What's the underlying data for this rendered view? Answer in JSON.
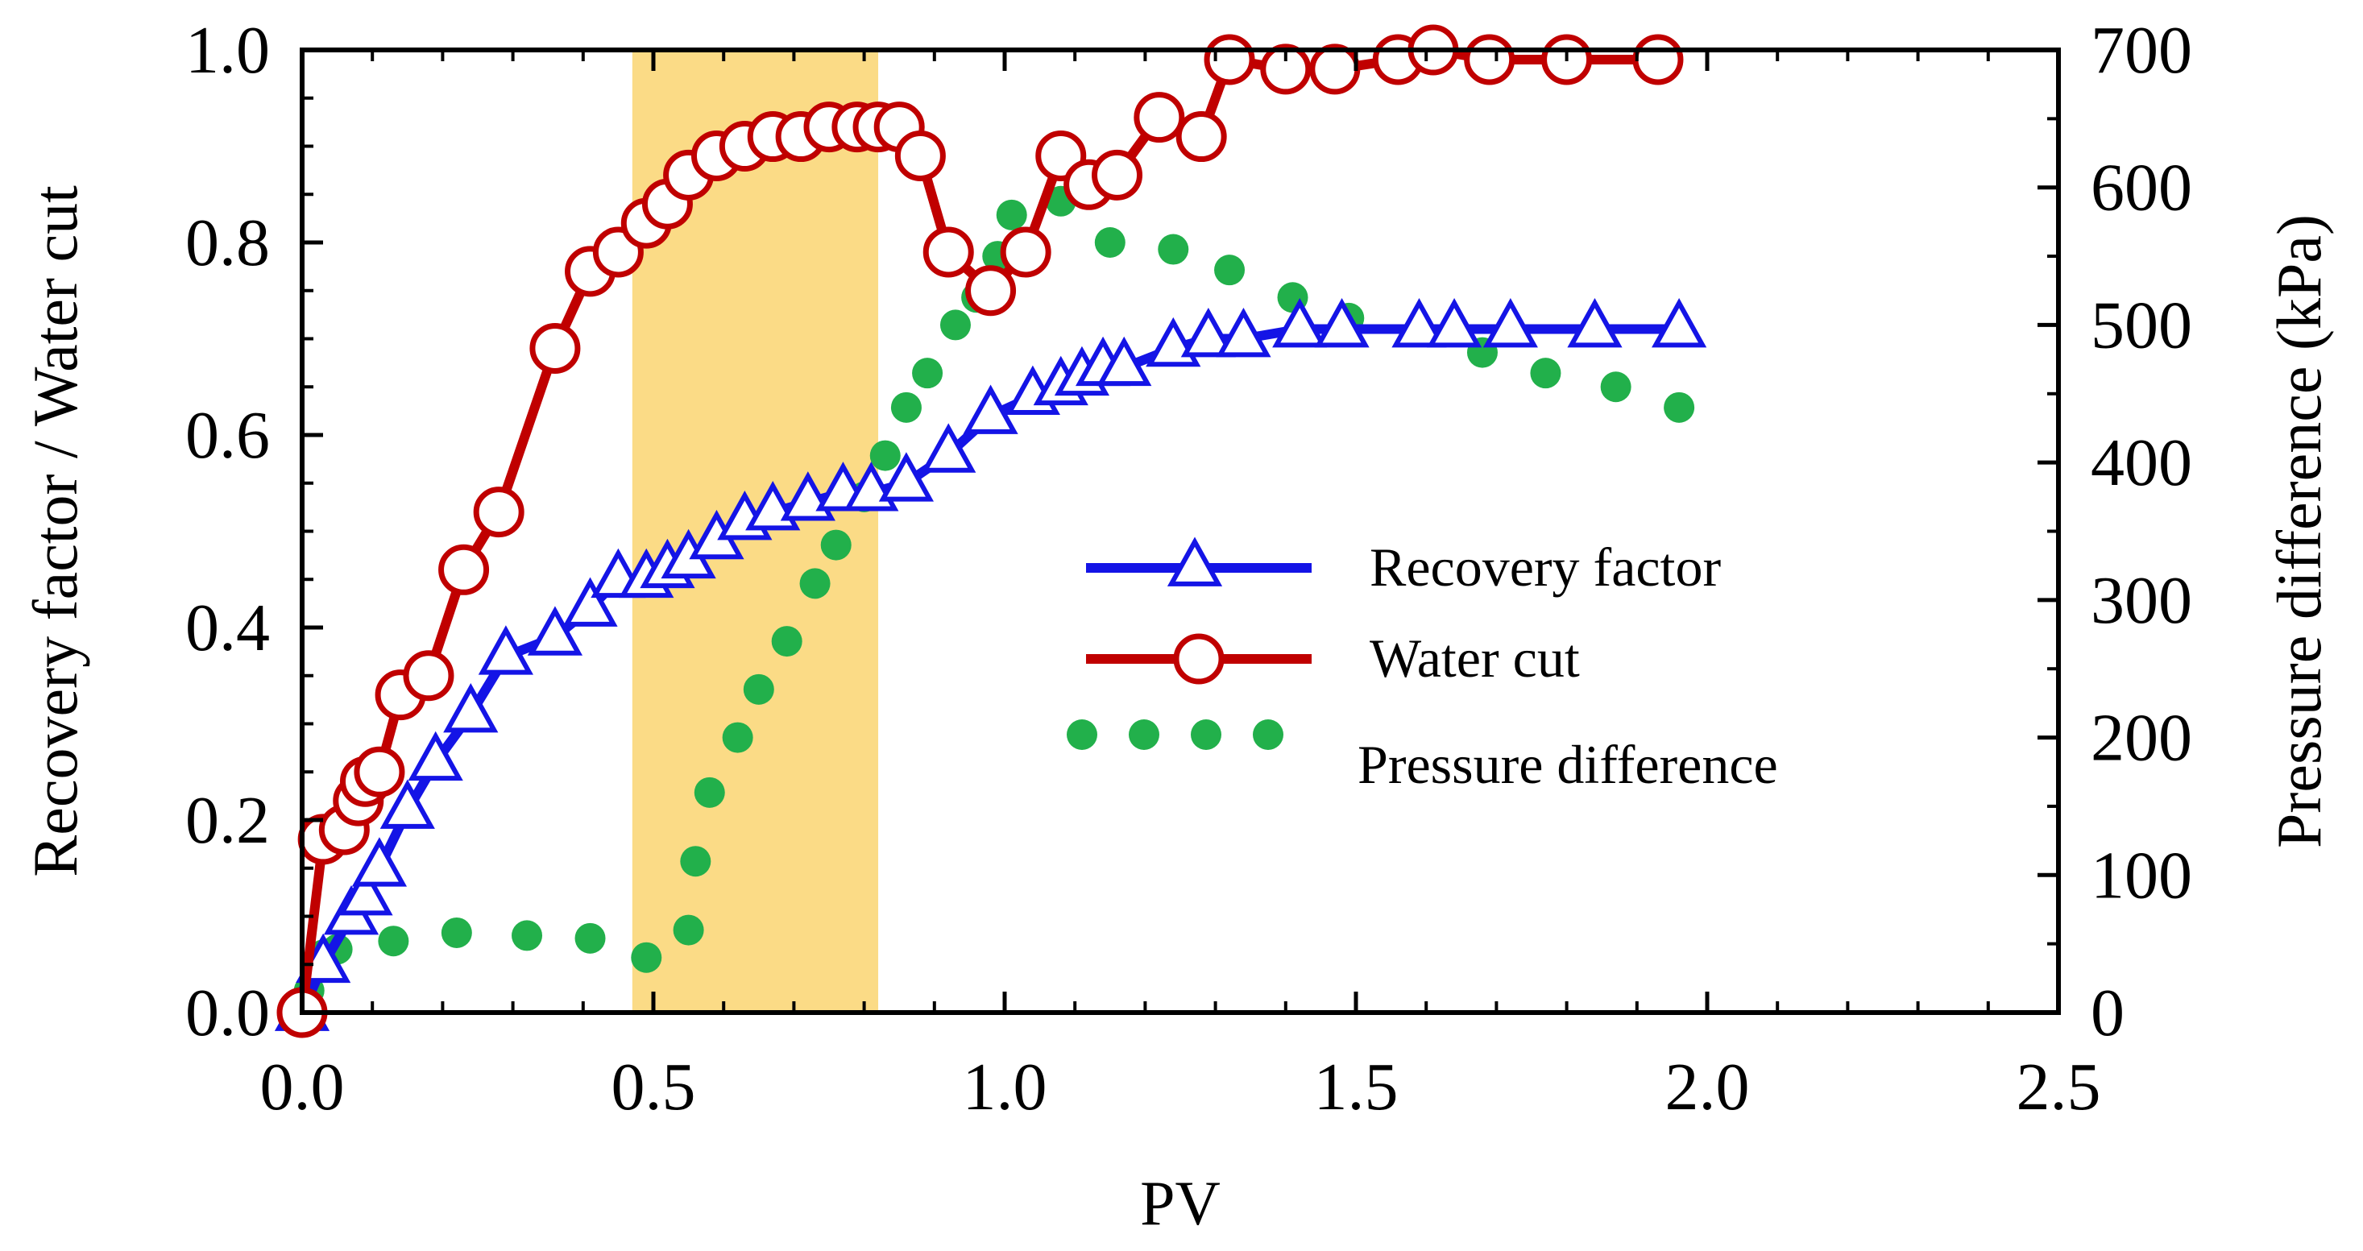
{
  "chart_data": {
    "type": "line",
    "title": "",
    "xlabel": "PV",
    "ylabel_left": "Recovery factor / Water cut",
    "ylabel_right": "Pressure difference (kPa)",
    "xlim": [
      0,
      2.5
    ],
    "ylim_left": [
      0,
      1.0
    ],
    "ylim_right": [
      0,
      700
    ],
    "x_ticks": [
      "0.0",
      "0.5",
      "1.0",
      "1.5",
      "2.0",
      "2.5"
    ],
    "y_left_ticks": [
      "0.0",
      "0.2",
      "0.4",
      "0.6",
      "0.8",
      "1.0"
    ],
    "y_right_ticks": [
      "0",
      "100",
      "200",
      "300",
      "400",
      "500",
      "600",
      "700"
    ],
    "grid": false,
    "legend_position": "center-right",
    "highlight_region": {
      "x_from": 0.47,
      "x_to": 0.82,
      "color": "#FBD980"
    },
    "series": [
      {
        "name": "Recovery factor",
        "axis": "left",
        "style": "line-triangle",
        "color": "#1414E6",
        "x": [
          0.0,
          0.03,
          0.07,
          0.09,
          0.11,
          0.15,
          0.19,
          0.24,
          0.29,
          0.36,
          0.41,
          0.45,
          0.49,
          0.52,
          0.55,
          0.59,
          0.63,
          0.67,
          0.72,
          0.77,
          0.81,
          0.86,
          0.92,
          0.98,
          1.04,
          1.08,
          1.11,
          1.14,
          1.17,
          1.24,
          1.29,
          1.34,
          1.42,
          1.48,
          1.59,
          1.64,
          1.72,
          1.84,
          1.96
        ],
        "y": [
          0.0,
          0.05,
          0.1,
          0.12,
          0.15,
          0.21,
          0.26,
          0.31,
          0.37,
          0.39,
          0.42,
          0.45,
          0.45,
          0.46,
          0.47,
          0.49,
          0.51,
          0.52,
          0.53,
          0.54,
          0.54,
          0.55,
          0.58,
          0.62,
          0.64,
          0.65,
          0.66,
          0.67,
          0.67,
          0.69,
          0.7,
          0.7,
          0.71,
          0.71,
          0.71,
          0.71,
          0.71,
          0.71,
          0.71
        ]
      },
      {
        "name": "Water cut",
        "axis": "left",
        "style": "line-circle",
        "color": "#C00000",
        "x": [
          0.0,
          0.03,
          0.06,
          0.08,
          0.09,
          0.11,
          0.14,
          0.18,
          0.23,
          0.28,
          0.36,
          0.41,
          0.45,
          0.49,
          0.52,
          0.55,
          0.59,
          0.63,
          0.67,
          0.71,
          0.75,
          0.79,
          0.82,
          0.85,
          0.88,
          0.92,
          0.98,
          1.03,
          1.08,
          1.12,
          1.16,
          1.22,
          1.28,
          1.32,
          1.4,
          1.47,
          1.56,
          1.61,
          1.69,
          1.8,
          1.93
        ],
        "y": [
          0.0,
          0.18,
          0.19,
          0.22,
          0.24,
          0.25,
          0.33,
          0.35,
          0.46,
          0.52,
          0.69,
          0.77,
          0.79,
          0.82,
          0.84,
          0.87,
          0.89,
          0.9,
          0.91,
          0.91,
          0.92,
          0.92,
          0.92,
          0.92,
          0.89,
          0.79,
          0.75,
          0.79,
          0.89,
          0.86,
          0.87,
          0.93,
          0.91,
          0.99,
          0.98,
          0.98,
          0.99,
          1.0,
          0.99,
          0.99,
          0.99
        ]
      },
      {
        "name": "Pressure difference",
        "axis": "right",
        "style": "dots",
        "color": "#22B04B",
        "x": [
          0.01,
          0.02,
          0.03,
          0.05,
          0.13,
          0.22,
          0.32,
          0.41,
          0.49,
          0.55,
          0.56,
          0.58,
          0.62,
          0.65,
          0.69,
          0.73,
          0.76,
          0.8,
          0.83,
          0.86,
          0.89,
          0.93,
          0.96,
          0.99,
          1.01,
          1.08,
          1.15,
          1.24,
          1.32,
          1.41,
          1.49,
          1.59,
          1.68,
          1.77,
          1.87,
          1.96
        ],
        "y": [
          16,
          35,
          42,
          46,
          52,
          58,
          56,
          54,
          40,
          60,
          110,
          160,
          200,
          235,
          270,
          312,
          340,
          375,
          405,
          440,
          465,
          500,
          520,
          550,
          580,
          590,
          560,
          555,
          540,
          520,
          505,
          495,
          480,
          465,
          455,
          440
        ]
      }
    ]
  }
}
